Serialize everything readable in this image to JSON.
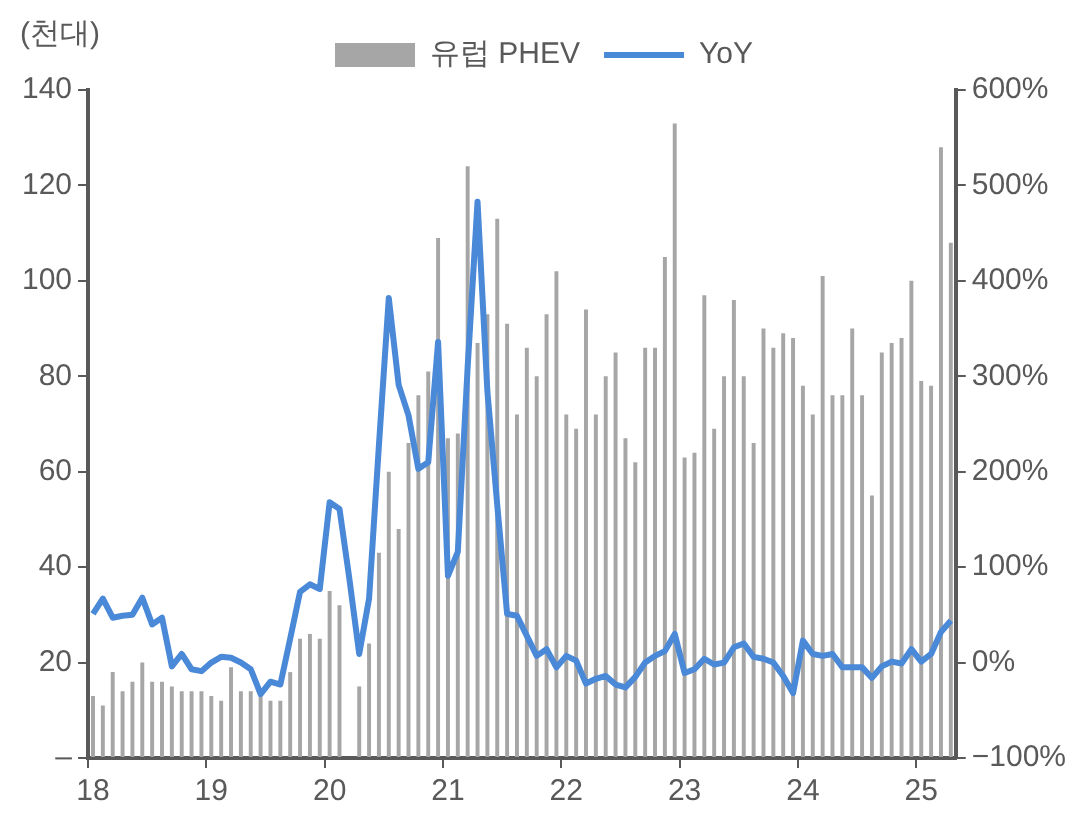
{
  "chart_data": {
    "type": "bar",
    "ylabel": "(천대)",
    "categories": [
      "18",
      null,
      null,
      null,
      null,
      null,
      null,
      null,
      null,
      null,
      null,
      null,
      "19",
      null,
      null,
      null,
      null,
      null,
      null,
      null,
      null,
      null,
      null,
      null,
      "20",
      null,
      null,
      null,
      null,
      null,
      null,
      null,
      null,
      null,
      null,
      null,
      "21",
      null,
      null,
      null,
      null,
      null,
      null,
      null,
      null,
      null,
      null,
      null,
      "22",
      null,
      null,
      null,
      null,
      null,
      null,
      null,
      null,
      null,
      null,
      null,
      "23",
      null,
      null,
      null,
      null,
      null,
      null,
      null,
      null,
      null,
      null,
      null,
      "24",
      null,
      null,
      null,
      null,
      null,
      null,
      null,
      null,
      null,
      null,
      null,
      "25",
      null,
      null,
      null
    ],
    "series": [
      {
        "name": "유럽 PHEV",
        "color": "#a6a6a6",
        "values": [
          13,
          11,
          18,
          14,
          16,
          20,
          16,
          16,
          15,
          14,
          14,
          14,
          13,
          12,
          19,
          14,
          14,
          13,
          12,
          12,
          18,
          25,
          26,
          25,
          35,
          32,
          null,
          15,
          24,
          43,
          60,
          48,
          66,
          76,
          81,
          109,
          67,
          68,
          124,
          87,
          93,
          113,
          91,
          72,
          86,
          80,
          93,
          102,
          72,
          69,
          94,
          72,
          80,
          85,
          67,
          62,
          86,
          86,
          105,
          133,
          63,
          64,
          97,
          69,
          80,
          96,
          80,
          66,
          90,
          86,
          89,
          88,
          78,
          72,
          101,
          76,
          76,
          90,
          76,
          55,
          85,
          87,
          88,
          100,
          79,
          78,
          128,
          108
        ]
      },
      {
        "name": "YoY",
        "type": "line",
        "axis": "y2",
        "color": "#4a88d8",
        "values": [
          51,
          67,
          47,
          49,
          50,
          68,
          40,
          47,
          -4,
          9,
          -7,
          -9,
          0,
          6,
          5,
          0,
          -7,
          -33,
          -20,
          -23,
          25,
          74,
          82,
          77,
          168,
          161,
          88,
          9,
          67,
          228,
          382,
          291,
          259,
          203,
          210,
          336,
          91,
          116,
          310,
          483,
          284,
          165,
          51,
          49,
          28,
          7,
          14,
          -5,
          7,
          2,
          -22,
          -17,
          -14,
          -23,
          -26,
          -15,
          0,
          7,
          12,
          30,
          -11,
          -7,
          4,
          -2,
          0,
          16,
          20,
          6,
          4,
          0,
          -14,
          -32,
          23,
          9,
          7,
          9,
          -5,
          -5,
          -5,
          -16,
          -4,
          1,
          -1,
          14,
          1,
          9,
          32,
          44
        ]
      }
    ],
    "ylim": [
      0,
      140
    ],
    "yticks": [
      {
        "value": 0,
        "label": "–"
      },
      20,
      40,
      60,
      80,
      100,
      120,
      140
    ],
    "y2lim": [
      -100,
      600
    ],
    "y2ticks": [
      {
        "value": -100,
        "label": "−100%"
      },
      {
        "value": 0,
        "label": "0%"
      },
      {
        "value": 100,
        "label": "100%"
      },
      {
        "value": 200,
        "label": "200%"
      },
      {
        "value": 300,
        "label": "300%"
      },
      {
        "value": 400,
        "label": "400%"
      },
      {
        "value": 500,
        "label": "500%"
      },
      {
        "value": 600,
        "label": "600%"
      }
    ],
    "legend": "top"
  }
}
